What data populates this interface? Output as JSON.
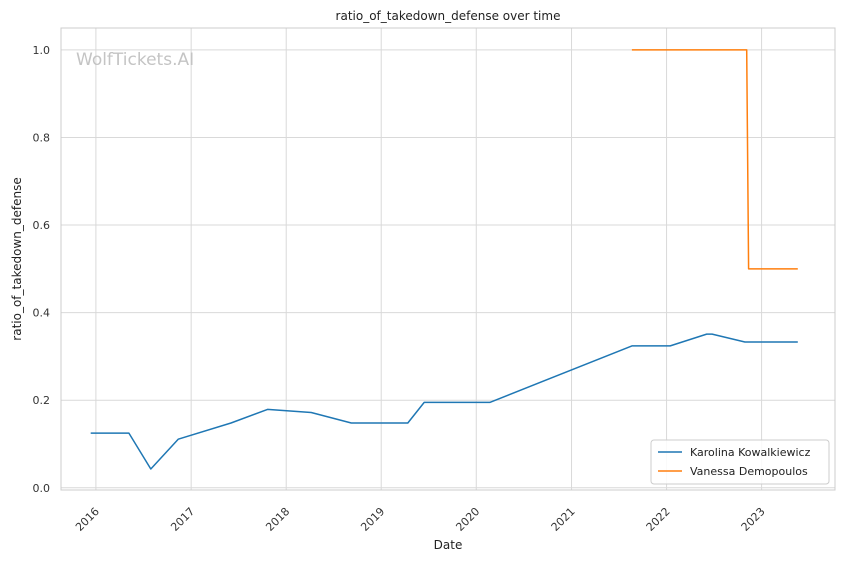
{
  "chart_data": {
    "type": "line",
    "title": "ratio_of_takedown_defense over time",
    "xlabel": "Date",
    "ylabel": "ratio_of_takedown_defense",
    "watermark": "WolfTickets.AI",
    "x_ticks": [
      "2016",
      "2017",
      "2018",
      "2019",
      "2020",
      "2021",
      "2022",
      "2023"
    ],
    "y_ticks": [
      "0.0",
      "0.2",
      "0.4",
      "0.6",
      "0.8",
      "1.0"
    ],
    "xlim": [
      "2015-08-20",
      "2023-10-10"
    ],
    "ylim": [
      -0.005,
      1.05
    ],
    "grid": true,
    "legend_position": "bottom-right",
    "series": [
      {
        "name": "Karolina Kowalkiewicz",
        "color": "#1f77b4",
        "points": [
          [
            "2015-12-12",
            0.125
          ],
          [
            "2016-05-07",
            0.125
          ],
          [
            "2016-07-30",
            0.043
          ],
          [
            "2016-11-12",
            0.111
          ],
          [
            "2017-06-03",
            0.148
          ],
          [
            "2017-10-21",
            0.179
          ],
          [
            "2018-04-07",
            0.172
          ],
          [
            "2018-09-08",
            0.148
          ],
          [
            "2019-04-13",
            0.148
          ],
          [
            "2019-06-15",
            0.195
          ],
          [
            "2020-02-22",
            0.195
          ],
          [
            "2021-08-21",
            0.324
          ],
          [
            "2022-01-15",
            0.324
          ],
          [
            "2022-06-04",
            0.351
          ],
          [
            "2022-06-25",
            0.351
          ],
          [
            "2022-10-29",
            0.333
          ],
          [
            "2023-05-20",
            0.333
          ]
        ]
      },
      {
        "name": "Vanessa Demopoulos",
        "color": "#ff7f0e",
        "points": [
          [
            "2021-08-21",
            1.0
          ],
          [
            "2022-11-05",
            1.0
          ],
          [
            "2022-11-12",
            0.5
          ],
          [
            "2023-05-20",
            0.5
          ]
        ]
      }
    ]
  }
}
